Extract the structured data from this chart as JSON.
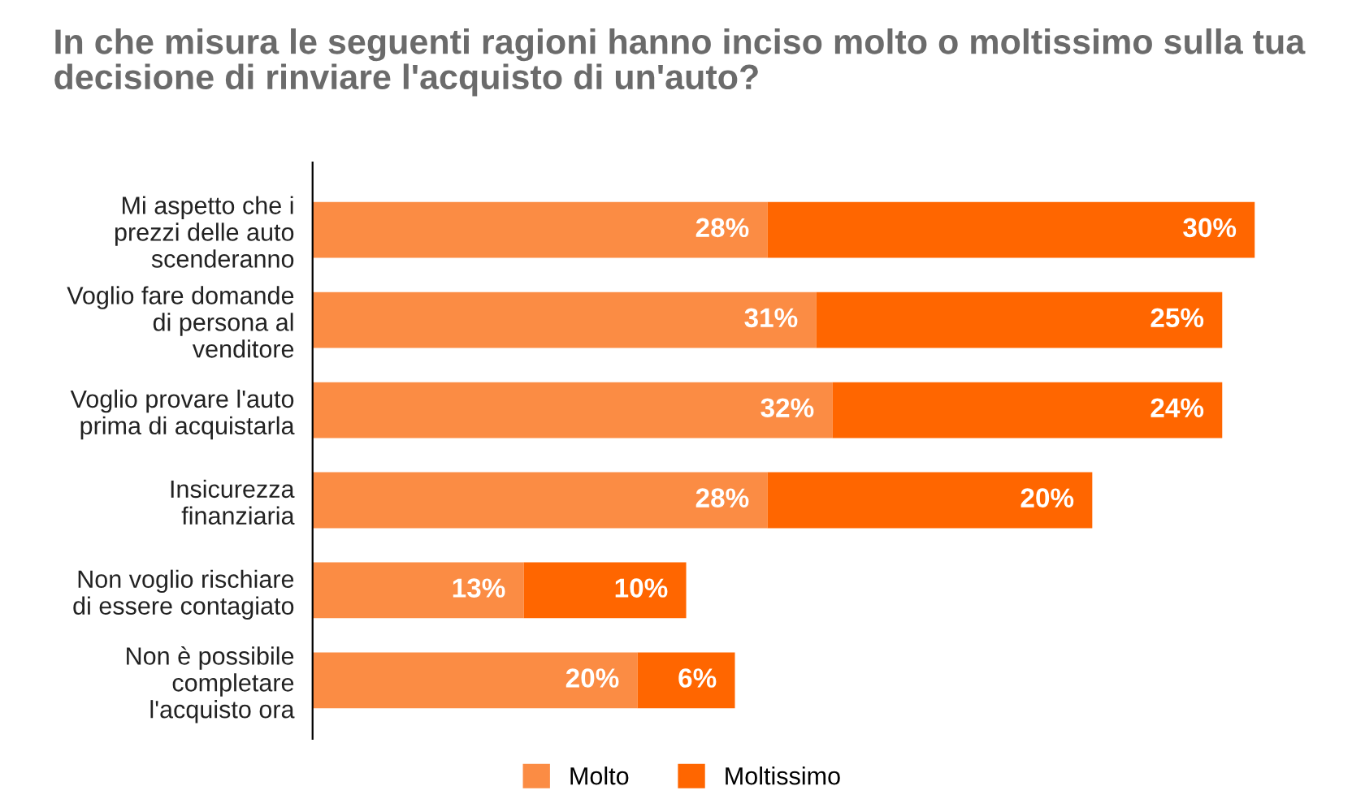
{
  "chart_data": {
    "type": "bar",
    "orientation": "horizontal",
    "stacked": true,
    "title": "In che misura le seguenti ragioni hanno inciso molto o moltissimo sulla tua\ndecisione di rinviare l'acquisto di un'auto?",
    "categories": [
      "Mi aspetto che i\nprezzi delle auto\nscenderanno",
      "Voglio fare domande\ndi persona al\nvenditore",
      "Voglio provare l'auto\nprima di acquistarla",
      "Insicurezza\nfinanziaria",
      "Non voglio rischiare\ndi essere contagiato",
      "Non è possibile\ncompletare\nl'acquisto ora"
    ],
    "series": [
      {
        "name": "Molto",
        "color": "#fb8c44",
        "values": [
          28,
          31,
          32,
          28,
          13,
          20
        ],
        "value_labels": [
          "28%",
          "31%",
          "32%",
          "28%",
          "13%",
          "20%"
        ]
      },
      {
        "name": "Moltissimo",
        "color": "#ff6600",
        "values": [
          30,
          25,
          24,
          20,
          10,
          6
        ],
        "value_labels": [
          "30%",
          "25%",
          "24%",
          "20%",
          "10%",
          "6%"
        ]
      }
    ],
    "legend": "bottom",
    "grid": false
  }
}
